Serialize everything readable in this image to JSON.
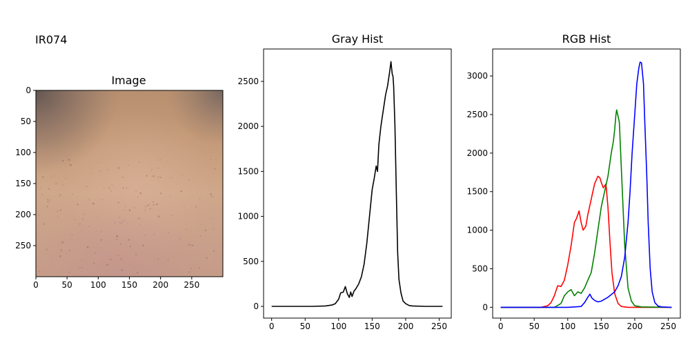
{
  "figure": {
    "suptitle": "IR074"
  },
  "chart_data": [
    {
      "type": "image",
      "title": "Image",
      "xticks": [
        "0",
        "50",
        "100",
        "150",
        "200",
        "250"
      ],
      "yticks": [
        "0",
        "50",
        "100",
        "150",
        "200",
        "250"
      ],
      "xlim": [
        0,
        300
      ],
      "ylim": [
        300,
        0
      ],
      "description_colors": {
        "skin_main": "#c79d7f",
        "skin_dark_corner": "#6e5d57",
        "skin_light": "#d2aa8c"
      }
    },
    {
      "type": "line",
      "title": "Gray Hist",
      "xlabel": "",
      "ylabel": "",
      "xlim": [
        -12,
        268
      ],
      "ylim": [
        -130,
        2860
      ],
      "xticks": [
        "0",
        "50",
        "100",
        "150",
        "200",
        "250"
      ],
      "yticks": [
        "0",
        "500",
        "1000",
        "1500",
        "2000",
        "2500"
      ],
      "series": [
        {
          "color": "#000000",
          "x": [
            0,
            60,
            80,
            90,
            95,
            100,
            103,
            107,
            110,
            113,
            116,
            118,
            120,
            123,
            126,
            130,
            134,
            138,
            142,
            146,
            150,
            153,
            156,
            158,
            160,
            163,
            166,
            170,
            173,
            176,
            178,
            179,
            180,
            181,
            182,
            184,
            186,
            188,
            190,
            193,
            196,
            200,
            205,
            210,
            230,
            255
          ],
          "y": [
            0,
            0,
            5,
            15,
            30,
            80,
            150,
            160,
            220,
            140,
            100,
            160,
            110,
            170,
            200,
            250,
            330,
            470,
            700,
            1000,
            1300,
            1420,
            1560,
            1500,
            1800,
            2000,
            2150,
            2350,
            2450,
            2600,
            2720,
            2650,
            2580,
            2560,
            2450,
            2000,
            1300,
            600,
            300,
            150,
            60,
            30,
            10,
            5,
            0,
            0
          ]
        }
      ]
    },
    {
      "type": "line",
      "title": "RGB Hist",
      "xlabel": "",
      "ylabel": "",
      "xlim": [
        -12,
        268
      ],
      "ylim": [
        -140,
        3350
      ],
      "xticks": [
        "0",
        "50",
        "100",
        "150",
        "200",
        "250"
      ],
      "yticks": [
        "0",
        "500",
        "1000",
        "1500",
        "2000",
        "2500",
        "3000"
      ],
      "series": [
        {
          "color": "#ff0000",
          "x": [
            0,
            60,
            70,
            75,
            80,
            85,
            90,
            95,
            100,
            105,
            110,
            113,
            117,
            120,
            123,
            127,
            130,
            135,
            140,
            145,
            148,
            150,
            153,
            157,
            160,
            163,
            166,
            170,
            175,
            180,
            190,
            255
          ],
          "y": [
            0,
            0,
            20,
            60,
            150,
            280,
            270,
            350,
            550,
            800,
            1100,
            1150,
            1250,
            1100,
            1000,
            1050,
            1200,
            1400,
            1600,
            1700,
            1680,
            1620,
            1550,
            1600,
            1300,
            850,
            450,
            180,
            50,
            10,
            0,
            0
          ]
        },
        {
          "color": "#008000",
          "x": [
            0,
            80,
            90,
            95,
            100,
            105,
            110,
            115,
            120,
            125,
            130,
            135,
            140,
            145,
            150,
            155,
            160,
            165,
            168,
            170,
            172,
            173,
            175,
            177,
            180,
            185,
            190,
            195,
            200,
            210,
            255
          ],
          "y": [
            0,
            0,
            50,
            150,
            200,
            230,
            150,
            200,
            180,
            250,
            350,
            450,
            700,
            1000,
            1300,
            1500,
            1700,
            2000,
            2150,
            2300,
            2500,
            2560,
            2480,
            2400,
            1800,
            800,
            250,
            80,
            20,
            5,
            0
          ]
        },
        {
          "color": "#0000ff",
          "x": [
            0,
            100,
            120,
            125,
            130,
            133,
            136,
            140,
            145,
            150,
            160,
            170,
            175,
            180,
            185,
            190,
            193,
            196,
            200,
            203,
            206,
            208,
            210,
            213,
            215,
            218,
            220,
            223,
            226,
            230,
            235,
            240,
            255
          ],
          "y": [
            0,
            0,
            10,
            60,
            130,
            170,
            120,
            90,
            70,
            80,
            130,
            200,
            280,
            400,
            650,
            1100,
            1500,
            2000,
            2500,
            2900,
            3100,
            3180,
            3170,
            2900,
            2400,
            1700,
            1100,
            500,
            200,
            60,
            15,
            5,
            0
          ]
        }
      ]
    }
  ]
}
